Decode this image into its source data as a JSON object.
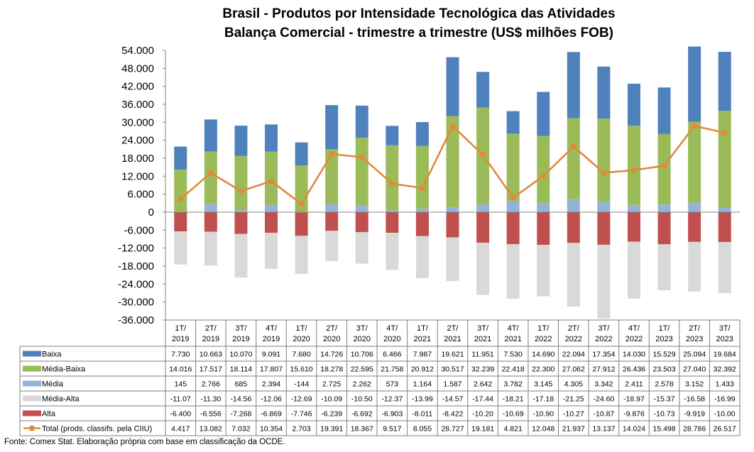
{
  "title_lines": [
    "Brasil - Produtos por Intensidade Tecnológica das Atividades",
    "Balança Comercial - trimestre a trimestre (US$ milhões FOB)"
  ],
  "source": "Fonte: Comex Stat. Elaboração própria com base em classificação da OCDE.",
  "y_ticks": [
    "54.000",
    "48.000",
    "42.000",
    "36.000",
    "30.000",
    "24.000",
    "18.000",
    "12.000",
    "6.000",
    "0",
    "-6.000",
    "-12.000",
    "-18.000",
    "-24.000",
    "-30.000",
    "-36.000"
  ],
  "chart_data": {
    "type": "bar",
    "title": "Brasil - Produtos por Intensidade Tecnológica das Atividades / Balança Comercial - trimestre a trimestre (US$ milhões FOB)",
    "stacked": true,
    "ylim": [
      -36000,
      54000
    ],
    "y_tick_step": 6000,
    "legend_placement": "data table (left column)",
    "categories": [
      [
        "1T/",
        "2019"
      ],
      [
        "2T/",
        "2019"
      ],
      [
        "3T/",
        "2019"
      ],
      [
        "4T/",
        "2019"
      ],
      [
        "1T/",
        "2020"
      ],
      [
        "2T/",
        "2020"
      ],
      [
        "3T/",
        "2020"
      ],
      [
        "4T/",
        "2020"
      ],
      [
        "1T/",
        "2021"
      ],
      [
        "2T/",
        "2021"
      ],
      [
        "3T/",
        "2021"
      ],
      [
        "4T/",
        "2021"
      ],
      [
        "1T/",
        "2022"
      ],
      [
        "2T/",
        "2022"
      ],
      [
        "3T/",
        "2022"
      ],
      [
        "4T/",
        "2022"
      ],
      [
        "1T/",
        "2023"
      ],
      [
        "2T/",
        "2023"
      ],
      [
        "3T/",
        "2023"
      ]
    ],
    "series": [
      {
        "name": "Baixa",
        "type": "bar",
        "color": "#4f81bd",
        "values": [
          7730,
          10663,
          10070,
          9091,
          7680,
          14726,
          10706,
          6466,
          7987,
          19621,
          11951,
          7530,
          14690,
          22094,
          17354,
          14030,
          15529,
          25094,
          19684
        ],
        "labels": [
          "7.730",
          "10.663",
          "10.070",
          "9.091",
          "7.680",
          "14.726",
          "10.706",
          "6.466",
          "7.987",
          "19.621",
          "11.951",
          "7.530",
          "14.690",
          "22.094",
          "17.354",
          "14.030",
          "15.529",
          "25.094",
          "19.684"
        ]
      },
      {
        "name": "Média-Baixa",
        "type": "bar",
        "color": "#9bbb59",
        "values": [
          14016,
          17517,
          18114,
          17807,
          15610,
          18278,
          22595,
          21758,
          20912,
          30517,
          32239,
          22418,
          22300,
          27062,
          27912,
          26436,
          23503,
          27040,
          32392
        ],
        "labels": [
          "14.016",
          "17.517",
          "18.114",
          "17.807",
          "15.610",
          "18.278",
          "22.595",
          "21.758",
          "20.912",
          "30.517",
          "32.239",
          "22.418",
          "22.300",
          "27.062",
          "27.912",
          "26.436",
          "23.503",
          "27.040",
          "32.392"
        ]
      },
      {
        "name": "Média",
        "type": "bar",
        "color": "#95b3d7",
        "values": [
          145,
          2766,
          685,
          2394,
          -144,
          2725,
          2262,
          573,
          1164,
          1587,
          2642,
          3782,
          3145,
          4305,
          3342,
          2411,
          2578,
          3152,
          1433
        ],
        "labels": [
          "145",
          "2.766",
          "685",
          "2.394",
          "-144",
          "2.725",
          "2.262",
          "573",
          "1.164",
          "1.587",
          "2.642",
          "3.782",
          "3.145",
          "4.305",
          "3.342",
          "2.411",
          "2.578",
          "3.152",
          "1.433"
        ]
      },
      {
        "name": "Média-Alta",
        "type": "bar",
        "color": "#d9d9d9",
        "values": [
          -11070,
          -11300,
          -14560,
          -12060,
          -12690,
          -10090,
          -10500,
          -12370,
          -13990,
          -14570,
          -17440,
          -18210,
          -17180,
          -21250,
          -24600,
          -18970,
          -15370,
          -16580,
          -16990
        ],
        "labels": [
          "-11.07",
          "-11.30",
          "-14.56",
          "-12.06",
          "-12.69",
          "-10.09",
          "-10.50",
          "-12.37",
          "-13.99",
          "-14.57",
          "-17.44",
          "-18.21",
          "-17.18",
          "-21.25",
          "-24.60",
          "-18.97",
          "-15.37",
          "-16.58",
          "-16.99"
        ]
      },
      {
        "name": "Alta",
        "type": "bar",
        "color": "#c0504d",
        "values": [
          -6400,
          -6556,
          -7268,
          -6869,
          -7746,
          -6239,
          -6692,
          -6903,
          -8011,
          -8422,
          -10200,
          -10690,
          -10900,
          -10270,
          -10870,
          -9876,
          -10730,
          -9919,
          -10000
        ],
        "labels": [
          "-6.400",
          "-6.556",
          "-7.268",
          "-6.869",
          "-7.746",
          "-6.239",
          "-6.692",
          "-6.903",
          "-8.011",
          "-8.422",
          "-10.20",
          "-10.69",
          "-10.90",
          "-10.27",
          "-10.87",
          "-9.876",
          "-10.73",
          "-9.919",
          "-10.00"
        ]
      },
      {
        "name": "Total (prods. classifs. pela CIIU)",
        "type": "line",
        "color": "#e08a3c",
        "values": [
          4417,
          13082,
          7032,
          10354,
          2703,
          19391,
          18367,
          9517,
          8055,
          28727,
          19181,
          4821,
          12048,
          21937,
          13137,
          14024,
          15498,
          28786,
          26517
        ],
        "labels": [
          "4.417",
          "13.082",
          "7.032",
          "10.354",
          "2.703",
          "19.391",
          "18.367",
          "9.517",
          "8.055",
          "28.727",
          "19.181",
          "4.821",
          "12.048",
          "21.937",
          "13.137",
          "14.024",
          "15.498",
          "28.786",
          "26.517"
        ]
      }
    ]
  }
}
